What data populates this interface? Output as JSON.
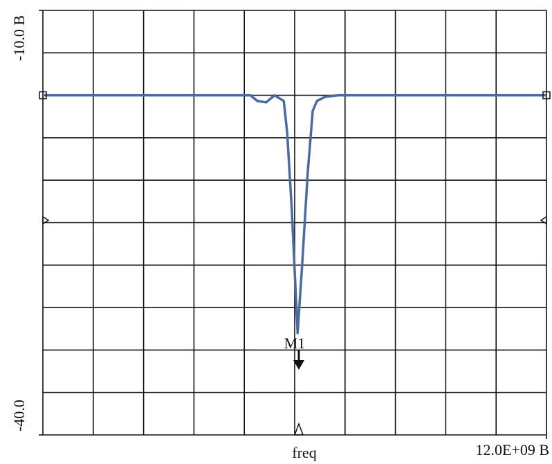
{
  "chart_data": {
    "type": "line",
    "x_label": "freq",
    "x": [
      0,
      4945000000,
      5110000000,
      5320000000,
      5520000000,
      5740000000,
      5820000000,
      5930000000,
      6070000000,
      6180000000,
      6310000000,
      6430000000,
      6530000000,
      6730000000,
      7050000000,
      12000000000
    ],
    "series": [
      {
        "color": "#4a6aa5",
        "values": [
          -16,
          -16,
          -16.4,
          -16.5,
          -16,
          -16.4,
          -18.6,
          -24,
          -32.8,
          -27.9,
          -21.5,
          -17.1,
          -16.4,
          -16.1,
          -16,
          -16
        ]
      }
    ],
    "xlim": [
      0,
      12000000000
    ],
    "xticks": [
      {
        "value": 12000000000,
        "label": "12.0E+09 B"
      }
    ],
    "ylim": [
      -40,
      -10
    ],
    "yticks": [
      {
        "value": -10,
        "label": "-10.0 B"
      },
      {
        "value": -40,
        "label": "-40.0"
      }
    ],
    "grid_divisions": {
      "x": 10,
      "y": 10
    },
    "marker_label": "M1"
  }
}
